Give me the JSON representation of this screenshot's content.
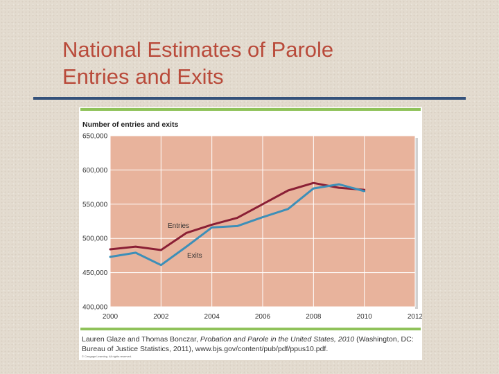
{
  "slide": {
    "title_line1": "National Estimates of Parole",
    "title_line2": "Entries and Exits"
  },
  "colors": {
    "title": "#b94a3a",
    "rule": "#34517a",
    "plot_bg": "#e8b39c",
    "entries": "#8a1f35",
    "exits": "#3d8fb8",
    "green_rule": "#8fc25a"
  },
  "caption": {
    "part1": "Lauren Glaze and Thomas Bonczar, ",
    "italic": "Probation and Parole in the United States, 2010",
    "part2": " (Washington, DC: Bureau of Justice Statistics, 2011), www.bjs.gov/content/pub/pdf/ppus10.pdf.",
    "copyright": "© Cengage Learning. All rights reserved."
  },
  "chart_data": {
    "type": "line",
    "title": "Number of entries and exits",
    "xlabel": "",
    "ylabel": "",
    "xlim": [
      2000,
      2012
    ],
    "ylim": [
      400000,
      650000
    ],
    "xticks": [
      2000,
      2002,
      2004,
      2006,
      2008,
      2010,
      2012
    ],
    "xtick_labels": [
      "2000",
      "2002",
      "2004",
      "2006",
      "2008",
      "2010",
      "2012"
    ],
    "yticks": [
      400000,
      450000,
      500000,
      550000,
      600000,
      650000
    ],
    "ytick_labels": [
      "400,000",
      "450,000",
      "500,000",
      "550,000",
      "600,000",
      "650,000"
    ],
    "grid": true,
    "series": [
      {
        "name": "Entries",
        "x": [
          2000,
          2001,
          2002,
          2003,
          2004,
          2005,
          2006,
          2007,
          2008,
          2009,
          2010
        ],
        "values": [
          484000,
          488000,
          483000,
          508000,
          520000,
          530000,
          550000,
          570000,
          581000,
          574000,
          571000
        ]
      },
      {
        "name": "Exits",
        "x": [
          2000,
          2001,
          2002,
          2003,
          2004,
          2005,
          2006,
          2007,
          2008,
          2009,
          2010
        ],
        "values": [
          473000,
          479000,
          461000,
          488000,
          516000,
          518000,
          531000,
          543000,
          573000,
          579000,
          569000
        ]
      }
    ]
  }
}
